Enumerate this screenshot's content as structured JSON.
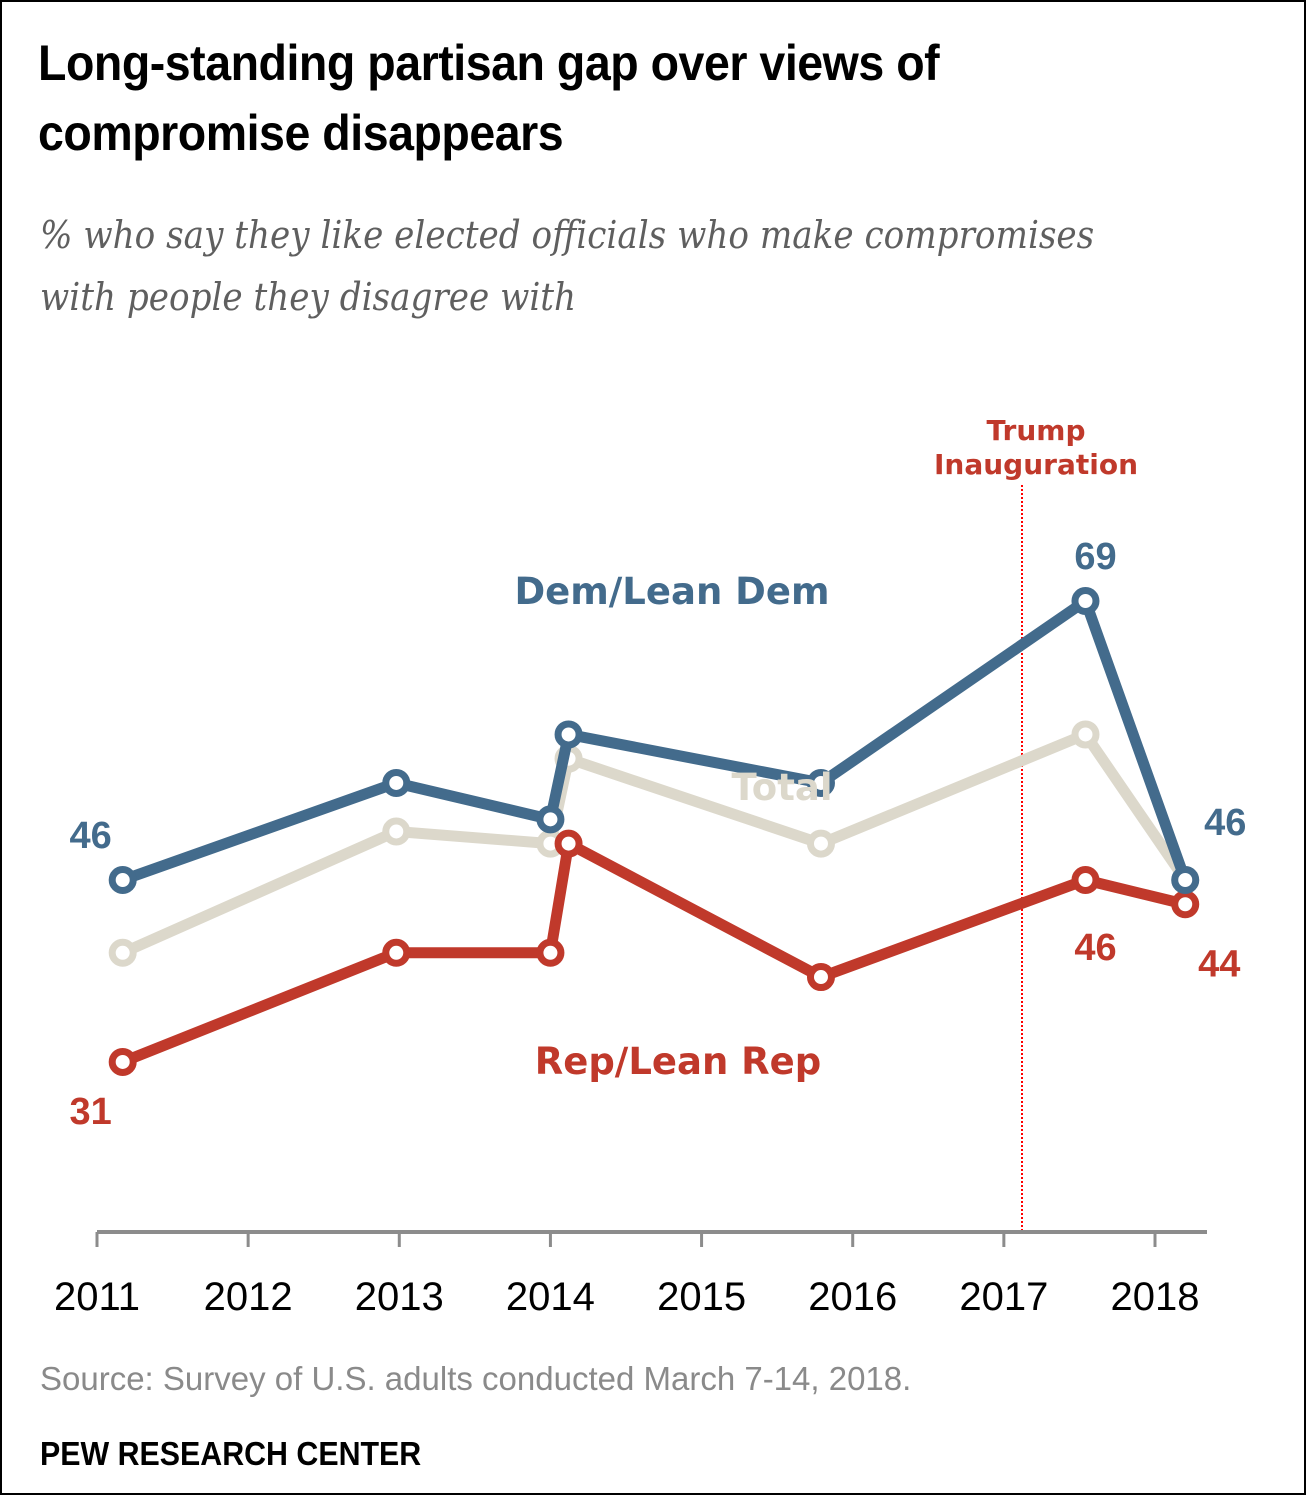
{
  "chart_data": {
    "type": "line",
    "title": "Long-standing partisan gap over views of compromise disappears",
    "subtitle": "% who say they like elected officials who make compromises with people they disagree with",
    "xlabel": "",
    "ylabel": "",
    "x_ticks": [
      2011,
      2012,
      2013,
      2014,
      2015,
      2016,
      2017,
      2018
    ],
    "x_tick_labels": [
      "2011",
      "2012",
      "2013",
      "2014",
      "2015",
      "2016",
      "2017",
      "2018"
    ],
    "xlim": [
      2011,
      2018.35
    ],
    "ylim": [
      17,
      79
    ],
    "grid": false,
    "legend": "inline labels",
    "x": [
      2011.17,
      2012.98,
      2014.0,
      2014.12,
      2015.79,
      2017.54,
      2018.2
    ],
    "series": [
      {
        "name": "Dem/Lean Dem",
        "key": "dem",
        "color": "#436b8c",
        "values": [
          46,
          54,
          51,
          58,
          54,
          69,
          46
        ],
        "labeled_points": [
          {
            "index": 0,
            "text": "46"
          },
          {
            "index": 5,
            "text": "69"
          },
          {
            "index": 6,
            "text": "46"
          }
        ]
      },
      {
        "name": "Total",
        "key": "total",
        "color": "#dcd8cb",
        "values": [
          40,
          50,
          49,
          56,
          49,
          58,
          46
        ],
        "labeled_points": []
      },
      {
        "name": "Rep/Lean Rep",
        "key": "rep",
        "color": "#c0392b",
        "values": [
          31,
          40,
          40,
          49,
          38,
          46,
          44
        ],
        "labeled_points": [
          {
            "index": 0,
            "text": "31"
          },
          {
            "index": 5,
            "text": "46"
          },
          {
            "index": 6,
            "text": "44"
          }
        ]
      }
    ],
    "annotations": [
      {
        "text_lines": [
          "Trump",
          "Inauguration"
        ],
        "x": 2017.12,
        "type": "vertical-dotted-line",
        "color": "#ff0000"
      }
    ]
  },
  "footer": {
    "source": "Source: Survey of U.S. adults conducted March 7-14, 2018.",
    "brand": "PEW RESEARCH CENTER"
  }
}
